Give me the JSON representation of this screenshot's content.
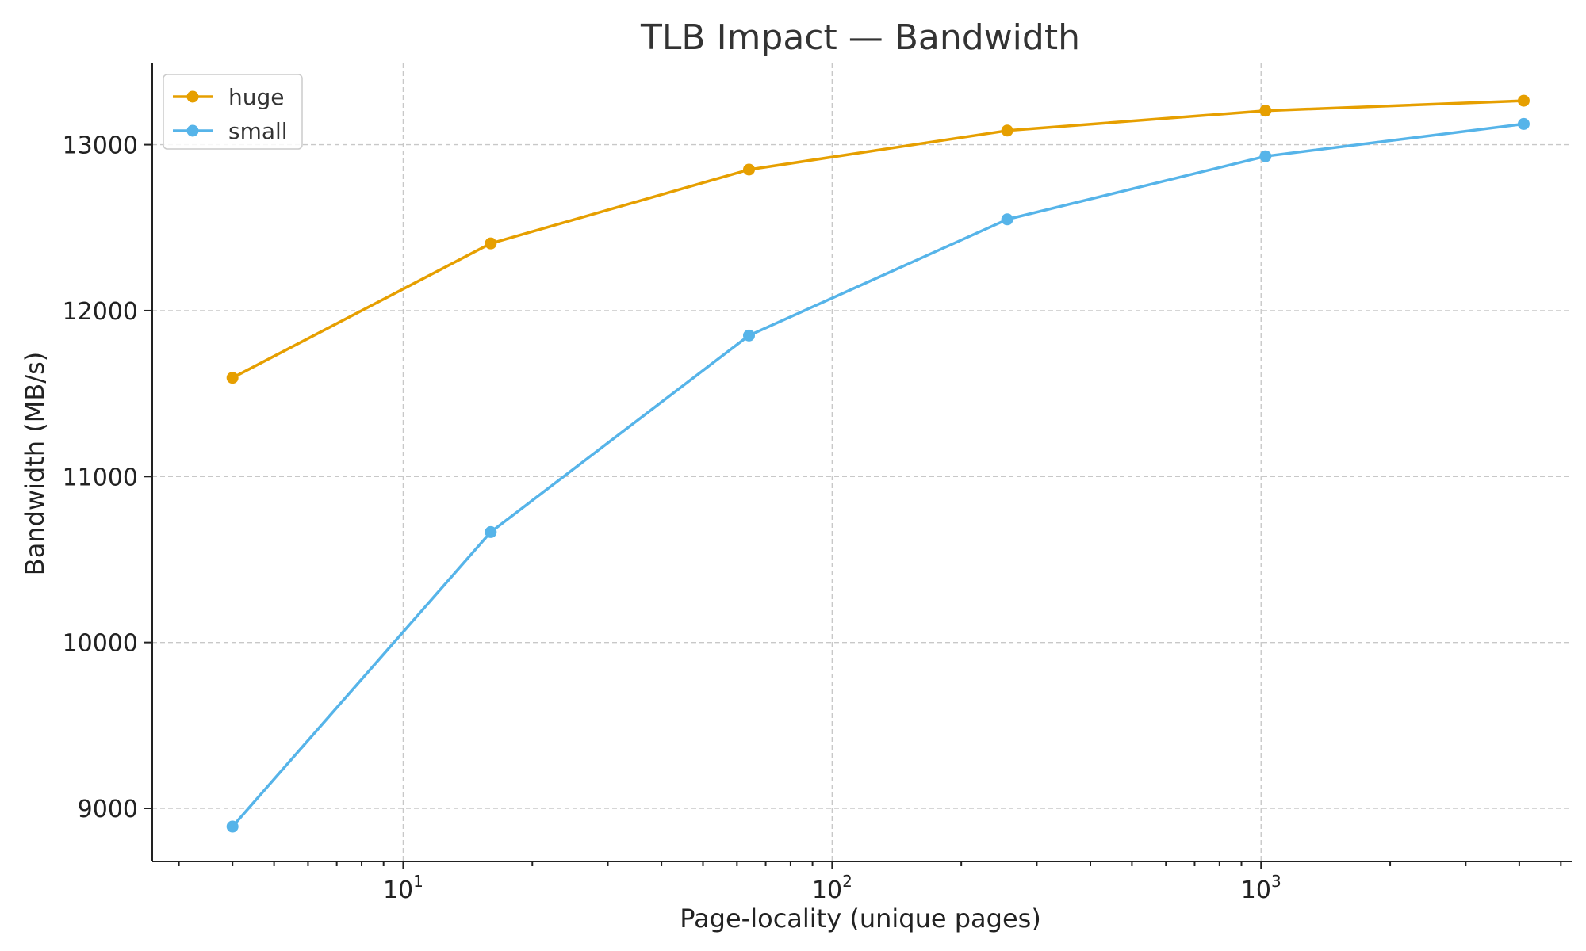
{
  "chart_data": {
    "type": "line",
    "title": "TLB Impact — Bandwidth",
    "xlabel": "Page-locality (unique pages)",
    "ylabel": "Bandwidth (MB/s)",
    "x_scale": "log",
    "xlim": [
      2.6,
      5300
    ],
    "ylim": [
      8680,
      13490
    ],
    "x": [
      4,
      16,
      64,
      256,
      1024,
      4096
    ],
    "x_ticks": [
      {
        "value": 10,
        "base": "10",
        "exp": "1"
      },
      {
        "value": 100,
        "base": "10",
        "exp": "2"
      },
      {
        "value": 1000,
        "base": "10",
        "exp": "3"
      }
    ],
    "y_ticks": [
      9000,
      10000,
      11000,
      12000,
      13000
    ],
    "grid": true,
    "legend": "top-left",
    "series": [
      {
        "name": "huge",
        "color": "#E69F00",
        "values": [
          11595,
          12405,
          12850,
          13085,
          13205,
          13265
        ]
      },
      {
        "name": "small",
        "color": "#56B4E9",
        "values": [
          8890,
          10665,
          11850,
          12550,
          12930,
          13125
        ]
      }
    ]
  }
}
